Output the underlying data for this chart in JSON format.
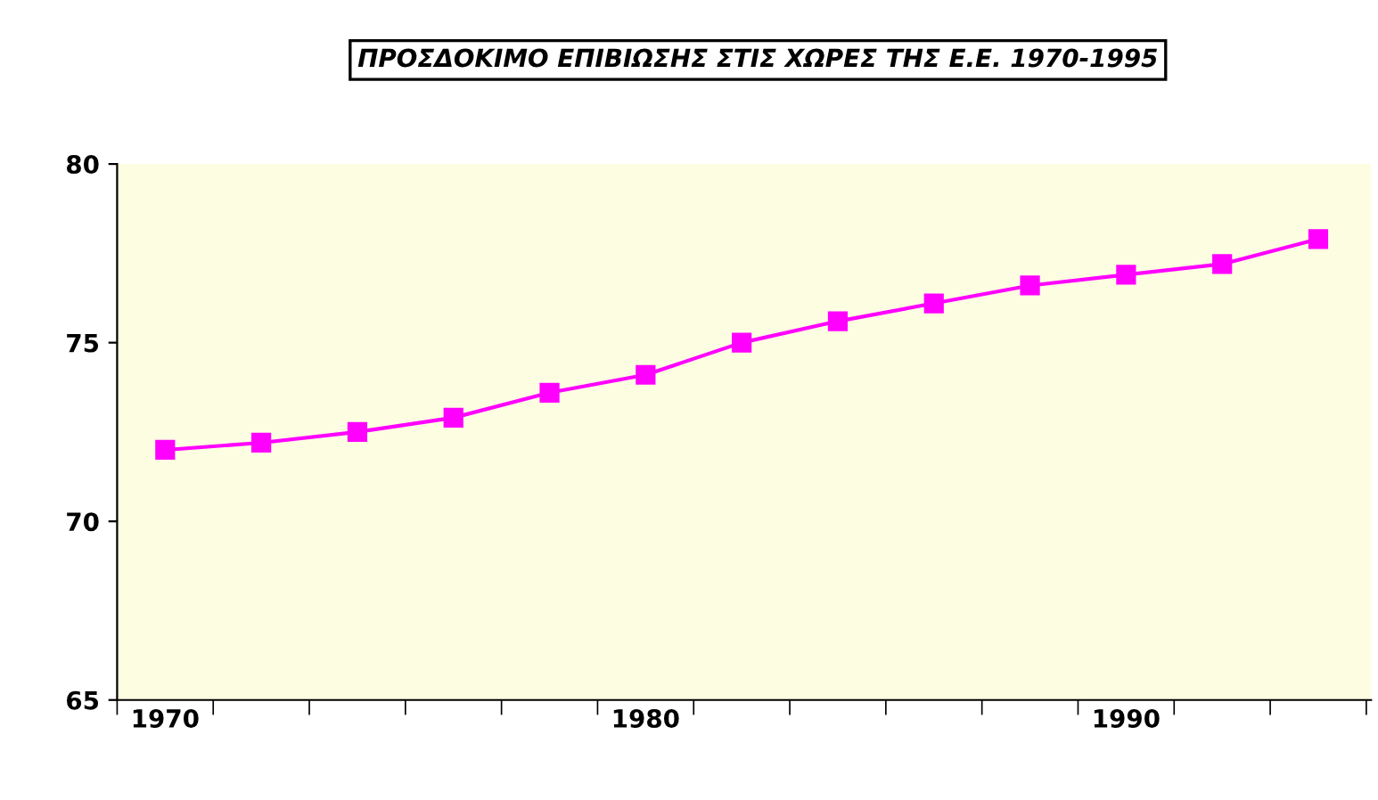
{
  "chart_data": {
    "type": "line",
    "title": "ΠΡΟΣΔΟΚΙΜΟ ΕΠΙΒΙΩΣΗΣ ΣΤΙΣ ΧΩΡΕΣ ΤΗΣ Ε.Ε. 1970-1995",
    "categories": [
      "1970",
      null,
      null,
      null,
      null,
      "1980",
      null,
      null,
      null,
      null,
      "1990",
      null,
      null
    ],
    "series": [
      {
        "color": "#ff00ff",
        "values": [
          72.0,
          72.2,
          72.5,
          72.9,
          73.6,
          74.1,
          75.0,
          75.6,
          76.1,
          76.6,
          76.9,
          77.2,
          77.9
        ]
      }
    ],
    "ylim": [
      65,
      80
    ],
    "yticks": [
      65,
      70,
      75,
      80
    ],
    "grid": false,
    "legend": false,
    "marker": "square",
    "line_style": "solid"
  }
}
